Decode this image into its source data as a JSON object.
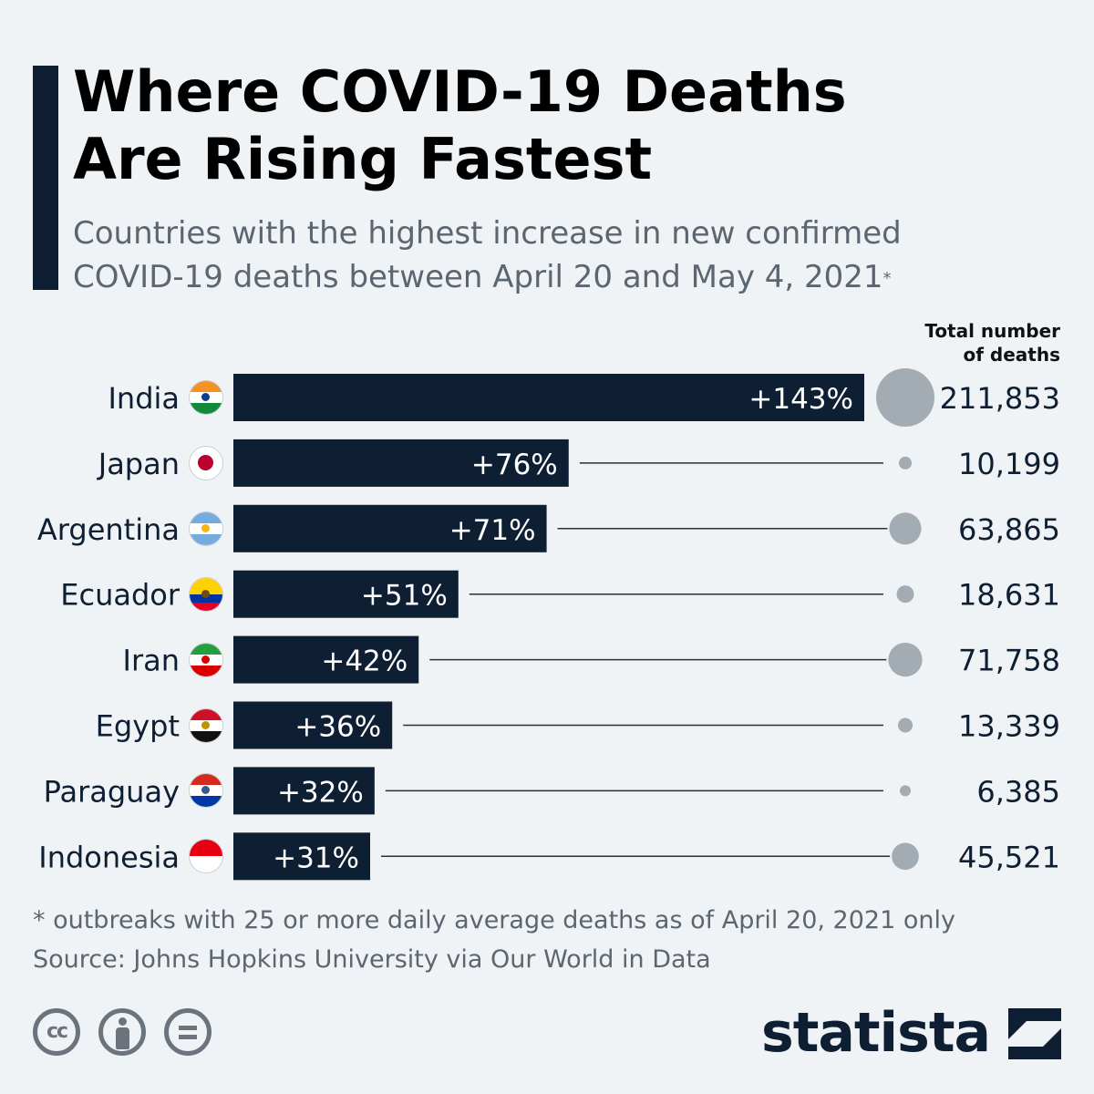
{
  "title": "Where COVID-19 Deaths\nAre Rising Fastest",
  "subtitle": "Countries with the highest increase in new confirmed\nCOVID-19 deaths between April 20 and May 4, 2021",
  "subtitle_mark": "*",
  "column_header": "Total number\nof deaths",
  "footnote": "* outbreaks with 25 or more daily average deaths as of April 20, 2021 only",
  "source": "Source: Johns Hopkins University via Our World in Data",
  "brand": "statista",
  "colors": {
    "bar": "#0f1f33",
    "bubble": "#a3abb3",
    "text": "#0f1f33",
    "muted": "#5c6670",
    "background": "#f0f3f5"
  },
  "license_icons": [
    "cc-icon",
    "attribution-icon",
    "no-derivatives-icon"
  ],
  "chart_data": {
    "type": "bar",
    "orientation": "horizontal",
    "categories": [
      "India",
      "Japan",
      "Argentina",
      "Ecuador",
      "Iran",
      "Egypt",
      "Paraguay",
      "Indonesia"
    ],
    "series": [
      {
        "name": "Increase in new confirmed deaths",
        "values": [
          143,
          76,
          71,
          51,
          42,
          36,
          32,
          31
        ],
        "labels": [
          "+143%",
          "+76%",
          "+71%",
          "+51%",
          "+42%",
          "+36%",
          "+32%",
          "+31%"
        ]
      },
      {
        "name": "Total number of deaths",
        "values": [
          211853,
          10199,
          63865,
          18631,
          71758,
          13339,
          6385,
          45521
        ],
        "labels": [
          "211,853",
          "10,199",
          "63,865",
          "18,631",
          "71,758",
          "13,339",
          "6,385",
          "45,521"
        ]
      }
    ],
    "xlim": [
      0,
      143
    ],
    "grid": false,
    "legend": "none"
  }
}
